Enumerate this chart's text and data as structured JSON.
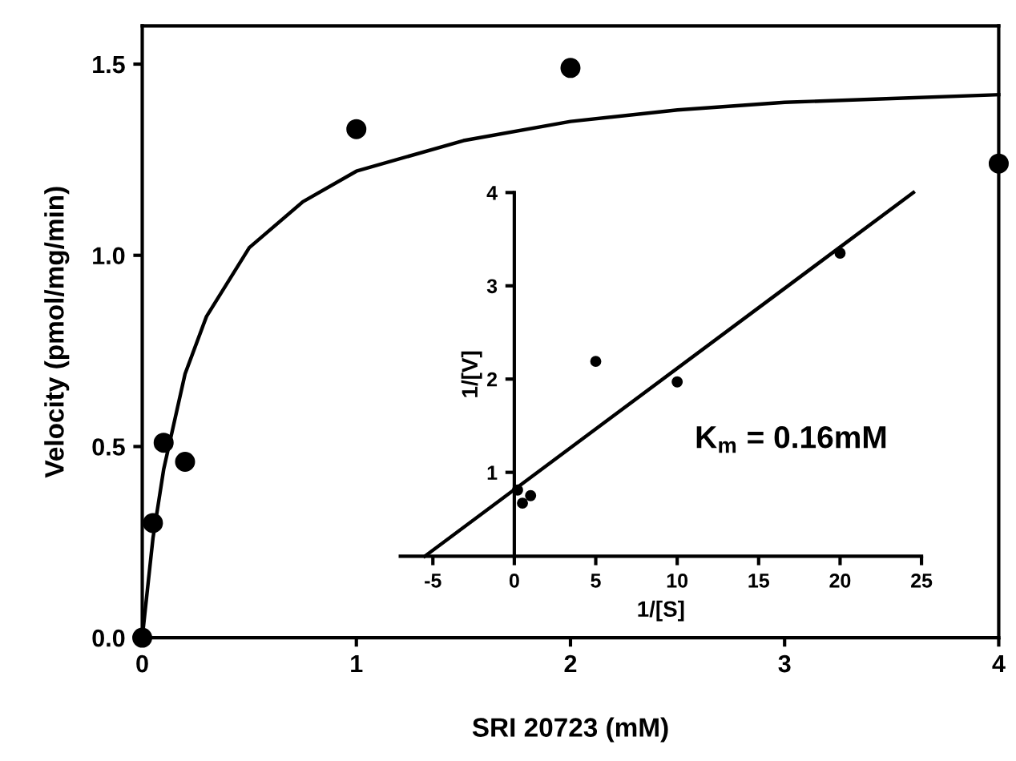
{
  "chart_data": [
    {
      "type": "scatter",
      "xlabel": "SRI 20723 (mM)",
      "ylabel": "Velocity (pmol/mg/min)",
      "xlim": [
        0,
        4
      ],
      "ylim": [
        0,
        1.6
      ],
      "xticks": [
        0,
        1,
        2,
        3,
        4
      ],
      "yticks": [
        {
          "value": 0,
          "label": "0.0"
        },
        {
          "value": 0.5,
          "label": "0.5"
        },
        {
          "value": 1,
          "label": "1.0"
        },
        {
          "value": 1.5,
          "label": "1.5"
        }
      ],
      "series": [
        {
          "marker": "circle",
          "color": "#000000",
          "x": [
            0,
            0.05,
            0.1,
            0.2,
            1,
            2,
            4
          ],
          "values": [
            0,
            0.3,
            0.51,
            0.46,
            1.33,
            1.49,
            1.24
          ]
        },
        {
          "type": "line",
          "marker": "none",
          "color": "#000000",
          "x": [
            0,
            0.05,
            0.1,
            0.2,
            0.3,
            0.5,
            0.75,
            1,
            1.5,
            2,
            2.5,
            3,
            3.5,
            4
          ],
          "values": [
            0,
            0.26,
            0.44,
            0.69,
            0.84,
            1.02,
            1.14,
            1.22,
            1.3,
            1.35,
            1.38,
            1.4,
            1.41,
            1.42
          ]
        }
      ]
    },
    {
      "type": "scatter",
      "xlabel": "1/[S]",
      "ylabel": "1/[V]",
      "xlim": [
        -7,
        25
      ],
      "ylim": [
        0.1,
        4
      ],
      "xticks": [
        -5,
        0,
        5,
        10,
        15,
        20,
        25
      ],
      "yticks": [
        1,
        2,
        3,
        4
      ],
      "annotations": [
        "K$_{m}$ = 0.16mM"
      ],
      "series": [
        {
          "marker": "circle",
          "color": "#000000",
          "x": [
            0.2,
            0.5,
            1,
            5,
            10,
            20
          ],
          "values": [
            0.81,
            0.67,
            0.75,
            2.19,
            1.97,
            3.35
          ]
        },
        {
          "type": "line",
          "marker": "none",
          "color": "#000000",
          "x": [
            -5.5,
            24.5
          ],
          "values": [
            0.1,
            4.0
          ]
        }
      ]
    }
  ]
}
